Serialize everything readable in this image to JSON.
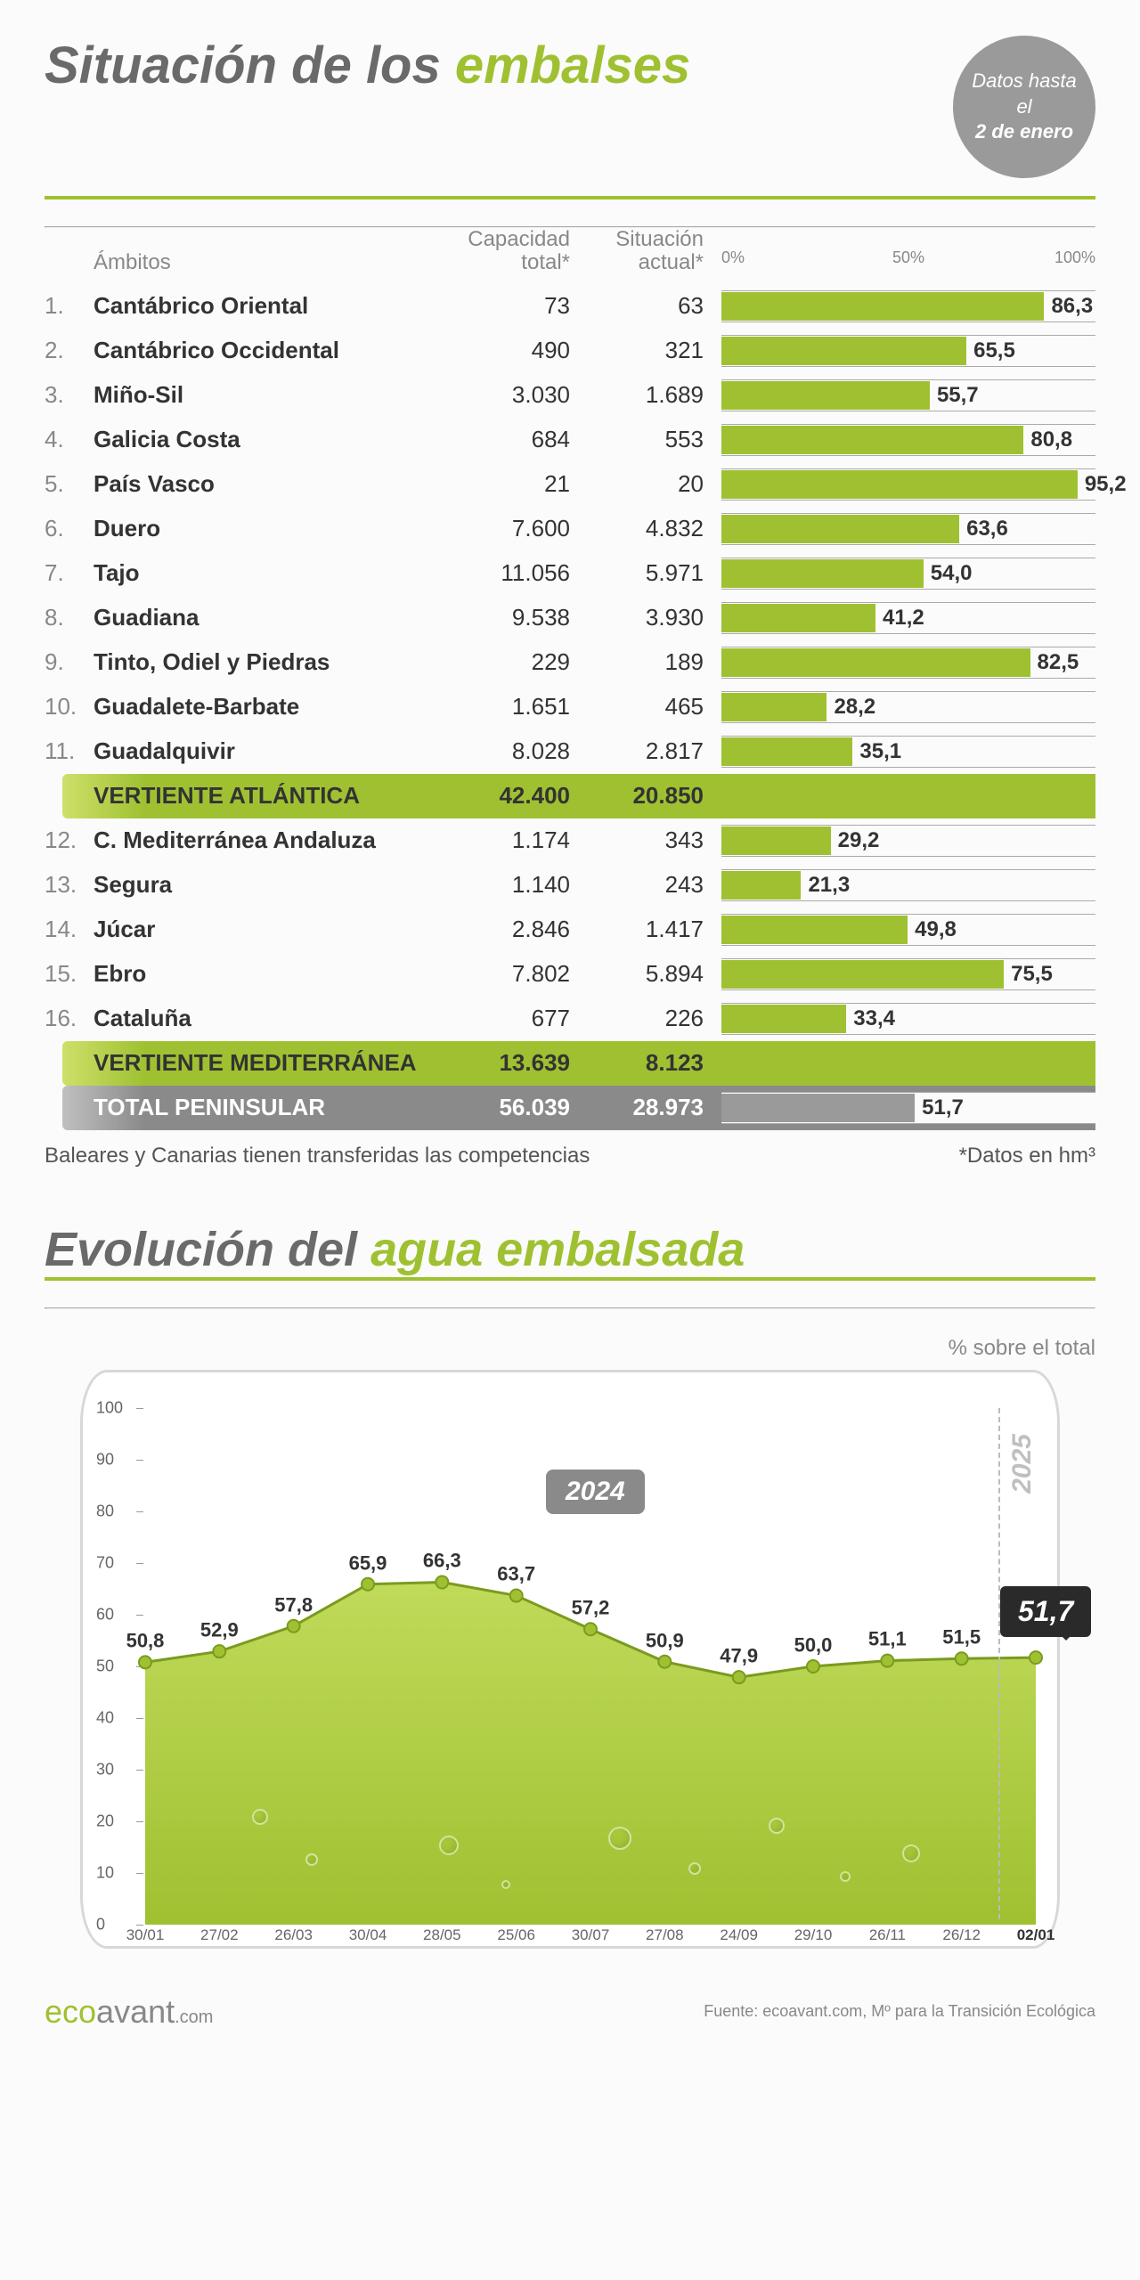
{
  "title_pref": "Situación de los ",
  "title_em": "embalses",
  "badge_line1": "Datos hasta el",
  "badge_line2": "2 de enero",
  "head_ambitos": "Ámbitos",
  "head_cap": "Capacidad total*",
  "head_cur": "Situación actual*",
  "axis_0": "0%",
  "axis_50": "50%",
  "axis_100": "100%",
  "rows": [
    {
      "n": "1.",
      "name": "Cantábrico Oriental",
      "cap": "73",
      "cur": "63",
      "pct": 86.3,
      "lbl": "86,3"
    },
    {
      "n": "2.",
      "name": "Cantábrico Occidental",
      "cap": "490",
      "cur": "321",
      "pct": 65.5,
      "lbl": "65,5"
    },
    {
      "n": "3.",
      "name": "Miño-Sil",
      "cap": "3.030",
      "cur": "1.689",
      "pct": 55.7,
      "lbl": "55,7"
    },
    {
      "n": "4.",
      "name": "Galicia Costa",
      "cap": "684",
      "cur": "553",
      "pct": 80.8,
      "lbl": "80,8"
    },
    {
      "n": "5.",
      "name": "País Vasco",
      "cap": "21",
      "cur": "20",
      "pct": 95.2,
      "lbl": "95,2"
    },
    {
      "n": "6.",
      "name": "Duero",
      "cap": "7.600",
      "cur": "4.832",
      "pct": 63.6,
      "lbl": "63,6"
    },
    {
      "n": "7.",
      "name": "Tajo",
      "cap": "11.056",
      "cur": "5.971",
      "pct": 54.0,
      "lbl": "54,0"
    },
    {
      "n": "8.",
      "name": "Guadiana",
      "cap": "9.538",
      "cur": "3.930",
      "pct": 41.2,
      "lbl": "41,2"
    },
    {
      "n": "9.",
      "name": "Tinto, Odiel y Piedras",
      "cap": "229",
      "cur": "189",
      "pct": 82.5,
      "lbl": "82,5"
    },
    {
      "n": "10.",
      "name": "Guadalete-Barbate",
      "cap": "1.651",
      "cur": "465",
      "pct": 28.2,
      "lbl": "28,2"
    },
    {
      "n": "11.",
      "name": "Guadalquivir",
      "cap": "8.028",
      "cur": "2.817",
      "pct": 35.1,
      "lbl": "35,1"
    }
  ],
  "sub1": {
    "name": "VERTIENTE ATLÁNTICA",
    "cap": "42.400",
    "cur": "20.850"
  },
  "rows2": [
    {
      "n": "12.",
      "name": "C. Mediterránea Andaluza",
      "cap": "1.174",
      "cur": "343",
      "pct": 29.2,
      "lbl": "29,2"
    },
    {
      "n": "13.",
      "name": "Segura",
      "cap": "1.140",
      "cur": "243",
      "pct": 21.3,
      "lbl": "21,3"
    },
    {
      "n": "14.",
      "name": "Júcar",
      "cap": "2.846",
      "cur": "1.417",
      "pct": 49.8,
      "lbl": "49,8"
    },
    {
      "n": "15.",
      "name": "Ebro",
      "cap": "7.802",
      "cur": "5.894",
      "pct": 75.5,
      "lbl": "75,5"
    },
    {
      "n": "16.",
      "name": "Cataluña",
      "cap": "677",
      "cur": "226",
      "pct": 33.4,
      "lbl": "33,4"
    }
  ],
  "sub2": {
    "name": "VERTIENTE MEDITERRÁNEA",
    "cap": "13.639",
    "cur": "8.123"
  },
  "total": {
    "name": "TOTAL PENINSULAR",
    "cap": "56.039",
    "cur": "28.973",
    "pct": 51.7,
    "lbl": "51,7"
  },
  "note_left": "Baleares y Canarias tienen transferidas las competencias",
  "note_right": "*Datos en hm³",
  "title2_pref": "Evolución del ",
  "title2_em": "agua embalsada",
  "sub2_lbl": "% sobre el total",
  "ylim": [
    0,
    100
  ],
  "ytick_step": 10,
  "evolution": {
    "x": [
      "30/01",
      "27/02",
      "26/03",
      "30/04",
      "28/05",
      "25/06",
      "30/07",
      "27/08",
      "24/09",
      "29/10",
      "26/11",
      "26/12",
      "02/01"
    ],
    "y": [
      50.8,
      52.9,
      57.8,
      65.9,
      66.3,
      63.7,
      57.2,
      50.9,
      47.9,
      50.0,
      51.1,
      51.5,
      51.7
    ],
    "lbl": [
      "50,8",
      "52,9",
      "57,8",
      "65,9",
      "66,3",
      "63,7",
      "57,2",
      "50,9",
      "47,9",
      "50,0",
      "51,1",
      "51,5",
      "51,7"
    ]
  },
  "year1": "2024",
  "year2": "2025",
  "final": "51,7",
  "logo_a": "eco",
  "logo_b": "avant",
  "logo_c": ".com",
  "source": "Fuente: ecoavant.com, Mº para la Transición Ecológica",
  "colors": {
    "accent": "#9fc131",
    "accent_dark": "#7a9b1f",
    "gray": "#8a8a8a",
    "text": "#333333"
  }
}
